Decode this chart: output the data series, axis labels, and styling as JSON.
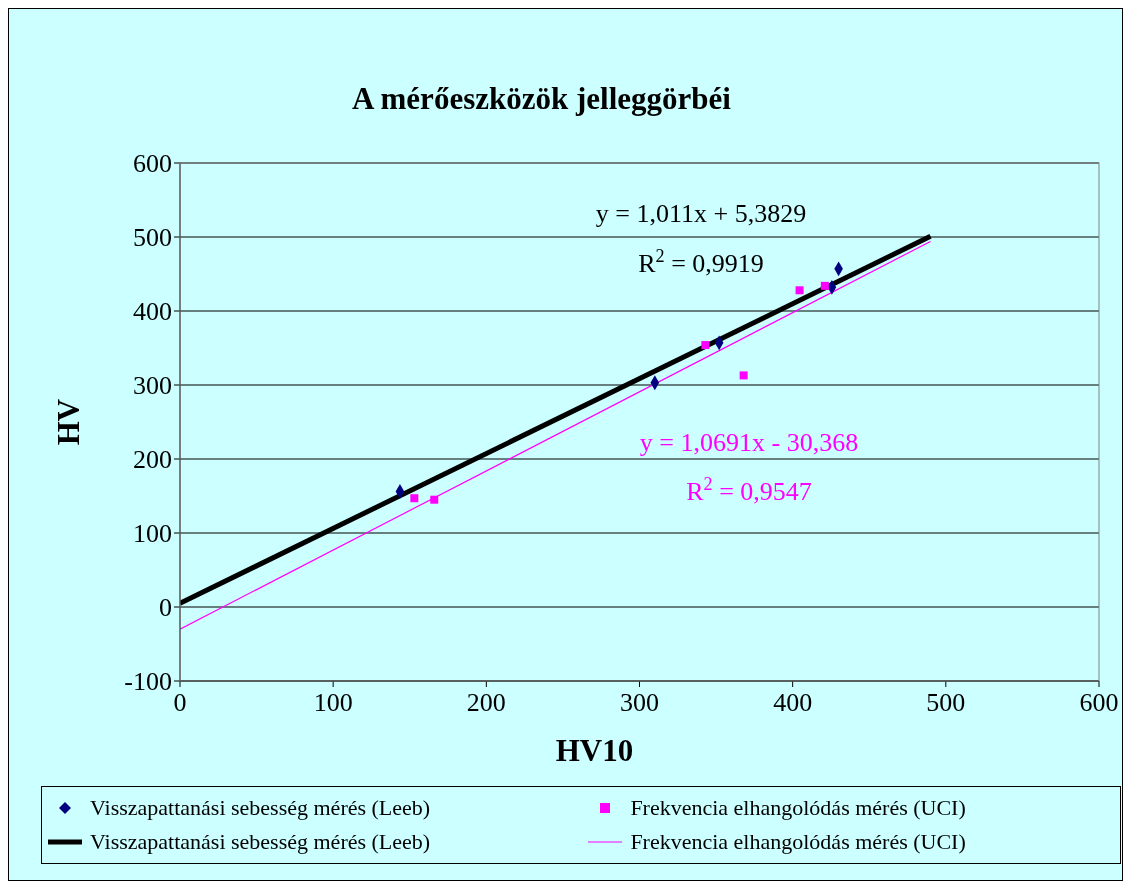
{
  "chart_data": {
    "type": "scatter",
    "title": "A mérőeszközök jelleggörbéi",
    "xlabel": "HV10",
    "ylabel": "HV",
    "xlim": [
      0,
      600
    ],
    "xticks": [
      0,
      100,
      200,
      300,
      400,
      500,
      600
    ],
    "ylim": [
      -100,
      600
    ],
    "yticks": [
      -100,
      0,
      100,
      200,
      300,
      400,
      500,
      600
    ],
    "grid": "y",
    "legend": "bottom",
    "series": [
      {
        "name": "Visszapattanási sebesség mérés (Leeb)",
        "marker": "diamond",
        "color": "#000080",
        "x": [
          143.6,
          310,
          352,
          425.6,
          430
        ],
        "values": [
          156,
          303,
          357,
          432,
          457
        ]
      },
      {
        "name": "Frekvencia elhangolódás mérés (UCI)",
        "marker": "square",
        "color": "#ff00ff",
        "x": [
          153,
          166,
          343,
          368,
          404.5,
          421
        ],
        "values": [
          147,
          145,
          354,
          313,
          428,
          434
        ]
      },
      {
        "name": "Visszapattanási sebesség mérés (Leeb)",
        "type": "line",
        "marker": "none",
        "color": "#000000",
        "x": [
          0,
          490
        ],
        "values": [
          5,
          501
        ]
      },
      {
        "name": "Frekvencia elhangolódás mérés (UCI)",
        "type": "line",
        "marker": "none",
        "color": "#ff00ff",
        "x": [
          0,
          490
        ],
        "values": [
          -30,
          494
        ]
      }
    ],
    "annotations": [
      "y = 1,011x + 5,3829",
      "R$^{2}$ = 0,9919",
      "y = 1,0691x - 30,368",
      "R$^{2}$ = 0,9547"
    ]
  }
}
